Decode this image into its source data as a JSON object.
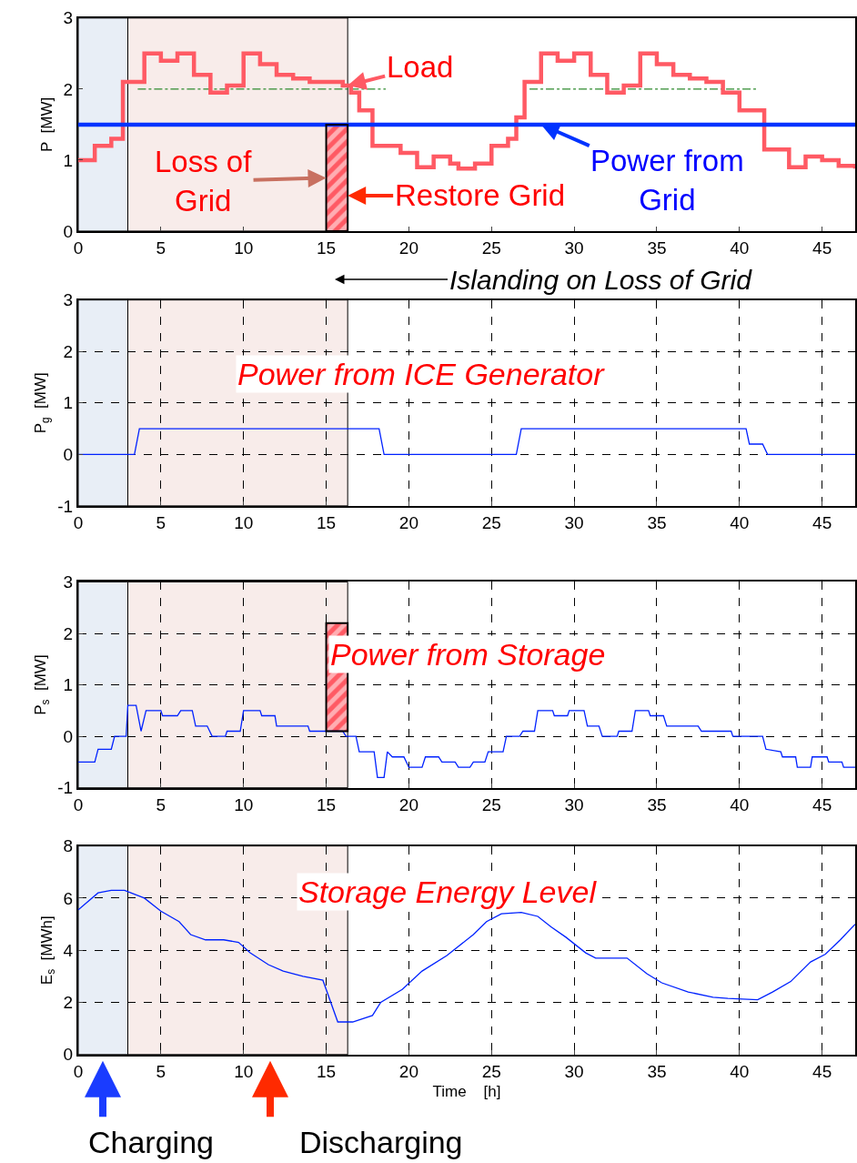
{
  "chart_data": [
    {
      "type": "line",
      "ylabel": "P  [MW]",
      "xlim": [
        0,
        47
      ],
      "xticks": [
        0,
        5,
        10,
        15,
        20,
        25,
        30,
        35,
        40,
        45
      ],
      "ylim": [
        0,
        3
      ],
      "yticks": [
        0,
        1,
        2,
        3
      ],
      "grid": false,
      "bands": [
        {
          "axis": "x",
          "from": 0,
          "to": 3,
          "color": "#e8eef6"
        },
        {
          "axis": "x",
          "from": 3,
          "to": 16.3,
          "color": "#f8ecea"
        }
      ],
      "series": [
        {
          "type": "line",
          "line_style": "dashed",
          "color": "#2e8b2e",
          "x": [
            3.6,
            18.6
          ],
          "values": [
            2,
            2
          ]
        },
        {
          "type": "line",
          "line_style": "dashed",
          "color": "#2e8b2e",
          "x": [
            27.3,
            41.0
          ],
          "values": [
            2,
            2
          ]
        },
        {
          "type": "step",
          "color": "#ff5a64",
          "x": [
            0,
            1,
            2,
            2.7,
            4,
            5,
            6,
            7,
            8,
            9,
            10,
            11,
            12,
            13,
            14,
            16,
            16.5,
            17,
            17.8,
            19.5,
            20.5,
            21.5,
            22.5,
            23,
            24,
            25,
            26,
            26.5,
            27,
            28,
            29,
            30,
            31,
            32,
            33,
            34,
            35,
            36,
            37,
            38,
            39,
            40,
            41.5,
            43,
            44,
            45,
            46,
            47
          ],
          "values": [
            1.0,
            1.2,
            1.3,
            2.1,
            2.5,
            2.4,
            2.5,
            2.2,
            1.95,
            2.05,
            2.5,
            2.35,
            2.2,
            2.15,
            2.1,
            2.05,
            1.95,
            1.7,
            1.2,
            1.1,
            0.9,
            1.05,
            0.95,
            0.88,
            0.95,
            1.2,
            1.3,
            1.6,
            2.1,
            2.5,
            2.4,
            2.5,
            2.2,
            1.95,
            2.05,
            2.5,
            2.35,
            2.2,
            2.15,
            2.1,
            1.95,
            1.7,
            1.15,
            0.9,
            1.05,
            1.0,
            0.92,
            0.88
          ]
        },
        {
          "type": "line",
          "color": "#0033ff",
          "x": [
            0,
            47
          ],
          "values": [
            1.5,
            1.5
          ]
        },
        {
          "type": "bar",
          "color": "#ff5a64",
          "x": [
            15.65
          ],
          "base": [
            0
          ],
          "values": [
            1.5
          ]
        }
      ],
      "annotations": [
        {
          "text": "Load",
          "x": 16.3,
          "y": 2.05
        },
        {
          "text": "Loss of\nGrid",
          "x": 15,
          "y": 0.75
        },
        {
          "text": "Restore Grid",
          "x": 16.3,
          "y": 0.5
        },
        {
          "text": "Power from\nGrid",
          "x": 28,
          "y": 1.5
        }
      ]
    },
    {
      "type": "line",
      "title": "Power from ICE Generator",
      "ylabel": "P$_{g}$  [MW]",
      "xlim": [
        0,
        47
      ],
      "xticks": [
        0,
        5,
        10,
        15,
        20,
        25,
        30,
        35,
        40,
        45
      ],
      "ylim": [
        -1,
        3
      ],
      "yticks": [
        -1,
        0,
        1,
        2,
        3
      ],
      "grid": true,
      "bands": [
        {
          "axis": "x",
          "from": 0,
          "to": 3,
          "color": "#e8eef6"
        },
        {
          "axis": "x",
          "from": 3,
          "to": 16.3,
          "color": "#f8ecea"
        }
      ],
      "series": [
        {
          "color": "#0022ff",
          "x": [
            0,
            3.4,
            3.7,
            18.2,
            18.5,
            26.5,
            26.8,
            40.4,
            40.6,
            41.4,
            41.7,
            47
          ],
          "values": [
            0,
            0,
            0.5,
            0.5,
            0,
            0,
            0.5,
            0.5,
            0.2,
            0.2,
            0,
            0
          ]
        }
      ],
      "annotations": [
        "Islanding on Loss of Grid"
      ]
    },
    {
      "type": "line",
      "title": "Power from Storage",
      "ylabel": "P$_{s}$  [MW]",
      "xlim": [
        0,
        47
      ],
      "xticks": [
        0,
        5,
        10,
        15,
        20,
        25,
        30,
        35,
        40,
        45
      ],
      "ylim": [
        -1,
        3
      ],
      "yticks": [
        -1,
        0,
        1,
        2,
        3
      ],
      "grid": true,
      "bands": [
        {
          "axis": "x",
          "from": 0,
          "to": 3,
          "color": "#e8eef6"
        },
        {
          "axis": "x",
          "from": 3,
          "to": 16.3,
          "color": "#f8ecea"
        }
      ],
      "series": [
        {
          "color": "#0022ff",
          "x": [
            0,
            1.0,
            1.2,
            2.0,
            2.2,
            2.9,
            3.0,
            3.5,
            3.8,
            4.1,
            5.0,
            5.1,
            6.0,
            6.2,
            6.9,
            7.1,
            7.8,
            8.1,
            8.9,
            9.0,
            9.8,
            10.0,
            11.0,
            11.1,
            11.9,
            12.0,
            13.9,
            14.0,
            16.0,
            16.2,
            16.8,
            17.0,
            17.9,
            18.1,
            18.5,
            18.7,
            19.0,
            19.7,
            20.0,
            20.8,
            21.0,
            21.8,
            22.0,
            22.8,
            23.0,
            23.7,
            23.9,
            24.6,
            24.8,
            25.7,
            25.9,
            26.7,
            26.9,
            27.6,
            27.8,
            28.7,
            28.8,
            29.6,
            29.7,
            30.6,
            30.8,
            31.5,
            31.7,
            32.6,
            32.7,
            33.5,
            33.7,
            34.5,
            34.6,
            35.4,
            35.6,
            37.5,
            37.7,
            39.5,
            39.6,
            41.4,
            41.6,
            42.5,
            42.6,
            43.4,
            43.5,
            44.3,
            44.4,
            45.3,
            45.4,
            46.2,
            46.3,
            47
          ],
          "values": [
            -0.5,
            -0.5,
            -0.25,
            -0.25,
            0,
            0,
            0.6,
            0.6,
            0.1,
            0.5,
            0.5,
            0.4,
            0.4,
            0.5,
            0.5,
            0.2,
            0.2,
            0,
            0,
            0.1,
            0.1,
            0.5,
            0.5,
            0.4,
            0.4,
            0.2,
            0.2,
            0.1,
            0.1,
            0,
            0,
            -0.3,
            -0.3,
            -0.8,
            -0.8,
            -0.3,
            -0.4,
            -0.4,
            -0.6,
            -0.6,
            -0.4,
            -0.4,
            -0.5,
            -0.5,
            -0.6,
            -0.6,
            -0.5,
            -0.5,
            -0.3,
            -0.3,
            0,
            0,
            0.1,
            0.1,
            0.5,
            0.5,
            0.4,
            0.4,
            0.5,
            0.5,
            0.2,
            0.2,
            0,
            0,
            0.1,
            0.1,
            0.5,
            0.5,
            0.4,
            0.4,
            0.2,
            0.2,
            0.1,
            0.1,
            0,
            0,
            -0.25,
            -0.3,
            -0.4,
            -0.4,
            -0.6,
            -0.6,
            -0.4,
            -0.4,
            -0.5,
            -0.5,
            -0.6,
            -0.6
          ]
        },
        {
          "type": "bar",
          "color": "#ff5a64",
          "x": [
            15.65
          ],
          "base": [
            0.1
          ],
          "values": [
            2.1
          ]
        }
      ]
    },
    {
      "type": "line",
      "title": "Storage Energy Level",
      "ylabel": "E$_{s}$  [MWh]",
      "xlabel": "Time    [h]",
      "xlim": [
        0,
        47
      ],
      "xticks": [
        0,
        5,
        10,
        15,
        20,
        25,
        30,
        35,
        40,
        45
      ],
      "ylim": [
        0,
        8
      ],
      "yticks": [
        0,
        2,
        4,
        6,
        8
      ],
      "grid": true,
      "bands": [
        {
          "axis": "x",
          "from": 0,
          "to": 3,
          "color": "#e8eef6",
          "label": "Charging"
        },
        {
          "axis": "x",
          "from": 3,
          "to": 16.3,
          "color": "#f8ecea",
          "label": "Discharging"
        }
      ],
      "series": [
        {
          "color": "#0022ff",
          "x": [
            0,
            1.2,
            2.0,
            2.8,
            4.0,
            5.0,
            6.1,
            6.8,
            7.7,
            8.8,
            9.7,
            10.4,
            11.5,
            12.4,
            13.6,
            14.8,
            15.7,
            16.6,
            17.8,
            18.3,
            19.6,
            20.8,
            22.3,
            23.9,
            24.7,
            25.6,
            26.8,
            27.8,
            28.6,
            29.5,
            30.7,
            31.3,
            33.2,
            34.4,
            35.3,
            36.9,
            38.4,
            39.3,
            41.1,
            42.0,
            43.1,
            44.3,
            45.2,
            46.1,
            47
          ],
          "values": [
            5.55,
            6.2,
            6.3,
            6.3,
            6.0,
            5.5,
            5.1,
            4.6,
            4.4,
            4.4,
            4.3,
            3.9,
            3.45,
            3.2,
            3.0,
            2.85,
            1.25,
            1.25,
            1.5,
            2.0,
            2.5,
            3.2,
            3.8,
            4.6,
            5.1,
            5.4,
            5.45,
            5.3,
            4.9,
            4.5,
            3.9,
            3.7,
            3.7,
            3.1,
            2.75,
            2.4,
            2.2,
            2.15,
            2.1,
            2.4,
            2.8,
            3.55,
            3.85,
            4.4,
            5.0
          ]
        }
      ]
    }
  ]
}
